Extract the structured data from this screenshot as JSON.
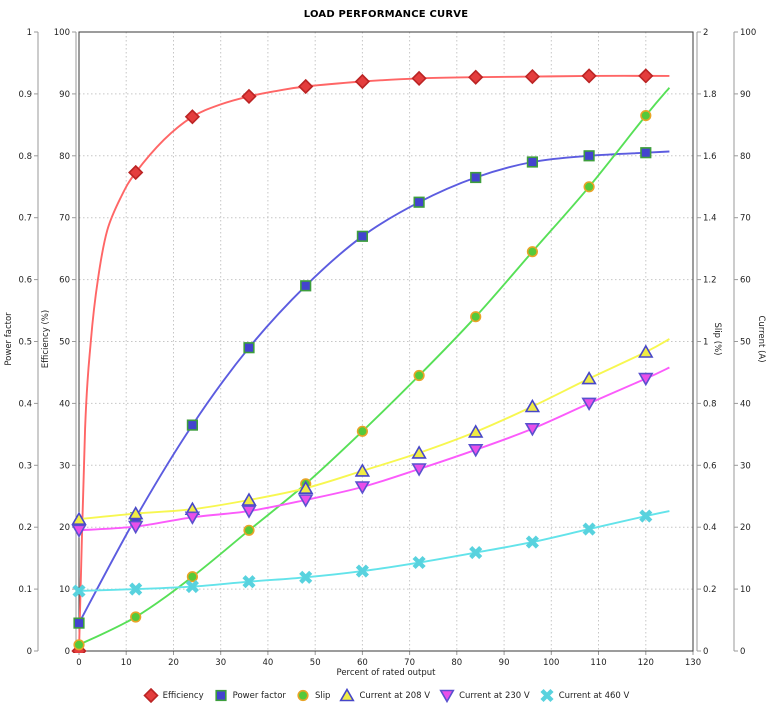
{
  "chart_data": {
    "type": "line",
    "title": "LOAD PERFORMANCE CURVE",
    "grid": true,
    "legend_position": "bottom",
    "x_axis": {
      "label": "Percent of rated output",
      "min": 0,
      "max": 130,
      "tick_step": 10,
      "ticks": [
        0,
        10,
        20,
        30,
        40,
        50,
        60,
        70,
        80,
        90,
        100,
        110,
        120,
        130
      ]
    },
    "y_axes": [
      {
        "id": "power_factor",
        "label": "Power factor",
        "min": 0,
        "max": 1,
        "tick_step": 0.1,
        "side": "left",
        "tick_labels_top_to_bottom": [
          "1",
          "0.9",
          "0.8",
          "0.7",
          "0.6",
          "0.5",
          "0.4",
          "0.3",
          "0.2",
          "0.1",
          "0"
        ]
      },
      {
        "id": "efficiency",
        "label": "Efficiency (%)",
        "min": 0,
        "max": 100,
        "tick_step": 10,
        "side": "left",
        "tick_labels_top_to_bottom": [
          "100",
          "90",
          "80",
          "70",
          "60",
          "50",
          "40",
          "30",
          "20",
          "10",
          "0"
        ]
      },
      {
        "id": "slip",
        "label": "Slip (%)",
        "min": 0,
        "max": 2,
        "tick_step": 0.2,
        "side": "right",
        "tick_labels_top_to_bottom": [
          "2",
          "1.8",
          "1.6",
          "1.4",
          "1.2",
          "1",
          "0.8",
          "0.6",
          "0.4",
          "0.2",
          "0"
        ]
      },
      {
        "id": "current",
        "label": "Current (A)",
        "min": 0,
        "max": 100,
        "tick_step": 10,
        "side": "right",
        "tick_labels_top_to_bottom": [
          "100",
          "90",
          "80",
          "70",
          "60",
          "50",
          "40",
          "30",
          "20",
          "10",
          "0"
        ]
      }
    ],
    "x": [
      0,
      12,
      24,
      36,
      48,
      60,
      72,
      84,
      96,
      108,
      120
    ],
    "series": [
      {
        "name": "Efficiency",
        "axis": "efficiency",
        "marker": "diamond",
        "line_color": "#ff6666",
        "marker_fill": "#e43d3d",
        "marker_stroke": "#bb2424",
        "values": [
          0,
          77.3,
          86.3,
          89.6,
          91.2,
          92.0,
          92.5,
          92.7,
          92.8,
          92.9,
          92.9
        ],
        "line_points": [
          [
            0,
            0
          ],
          [
            1.3,
            36
          ],
          [
            2.5,
            50
          ],
          [
            4,
            60
          ],
          [
            6,
            68
          ],
          [
            9,
            73.5
          ],
          [
            12,
            77.3
          ],
          [
            18,
            82.6
          ],
          [
            24,
            86.3
          ],
          [
            30,
            88.3
          ],
          [
            36,
            89.6
          ],
          [
            42,
            90.5
          ],
          [
            48,
            91.2
          ],
          [
            60,
            92.0
          ],
          [
            72,
            92.5
          ],
          [
            84,
            92.7
          ],
          [
            96,
            92.8
          ],
          [
            108,
            92.9
          ],
          [
            125,
            92.9
          ]
        ],
        "line_end": [
          125,
          92.9
        ]
      },
      {
        "name": "Power factor",
        "axis": "power_factor",
        "marker": "square",
        "line_color": "#5c5ce0",
        "marker_fill": "#4343cf",
        "marker_stroke": "#3d9e3d",
        "values": [
          0.045,
          0.215,
          0.365,
          0.49,
          0.59,
          0.67,
          0.725,
          0.765,
          0.79,
          0.8,
          0.805
        ],
        "line_end": [
          125,
          0.807
        ]
      },
      {
        "name": "Slip",
        "axis": "slip",
        "marker": "circle",
        "line_color": "#57e057",
        "marker_fill": "#55c93a",
        "marker_stroke": "#e8a426",
        "values": [
          0.02,
          0.11,
          0.24,
          0.39,
          0.54,
          0.71,
          0.89,
          1.08,
          1.29,
          1.5,
          1.73
        ],
        "line_end": [
          125,
          1.82
        ]
      },
      {
        "name": "Current at 208 V",
        "axis": "current",
        "marker": "triangle-up",
        "line_color": "#f7f750",
        "marker_fill": "#f0ec45",
        "marker_stroke": "#4646c8",
        "values": [
          21.3,
          22.2,
          22.9,
          24.4,
          26.3,
          29.1,
          32.0,
          35.4,
          39.5,
          44.0,
          48.3
        ],
        "line_end": [
          125,
          50.4
        ]
      },
      {
        "name": "Current at 230 V",
        "axis": "current",
        "marker": "triangle-down",
        "line_color": "#fb5bfb",
        "marker_fill": "#e94fe9",
        "marker_stroke": "#5a50cf",
        "values": [
          19.5,
          20.1,
          21.6,
          22.6,
          24.4,
          26.5,
          29.4,
          32.5,
          35.9,
          40.0,
          44.0
        ],
        "line_end": [
          125,
          45.8
        ]
      },
      {
        "name": "Current at 460 V",
        "axis": "current",
        "marker": "x",
        "line_color": "#63e3ea",
        "marker_fill": "#58d2de",
        "marker_stroke": "#58d2de",
        "values": [
          9.7,
          10.0,
          10.4,
          11.2,
          11.9,
          12.9,
          14.3,
          15.9,
          17.6,
          19.7,
          21.8
        ],
        "line_end": [
          125,
          22.6
        ]
      }
    ],
    "colors": {
      "grid": "#c6c6c6",
      "frame": "#3a3a3a",
      "axis_line": "#9a9a9a",
      "tick_text": "#222222",
      "background": "#ffffff"
    }
  }
}
